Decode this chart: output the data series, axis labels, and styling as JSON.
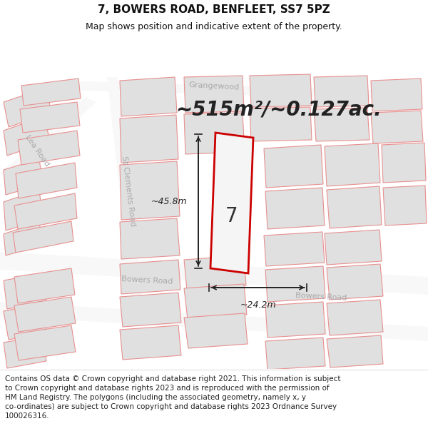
{
  "title": "7, BOWERS ROAD, BENFLEET, SS7 5PZ",
  "subtitle": "Map shows position and indicative extent of the property.",
  "area_text": "~515m²/~0.127ac.",
  "label_number": "7",
  "dim_width": "~24.2m",
  "dim_height": "~45.8m",
  "footer_lines": [
    "Contains OS data © Crown copyright and database right 2021. This information is subject to Crown copyright and database rights 2023 and is reproduced with the permission of",
    "HM Land Registry. The polygons (including the associated geometry, namely x, y co-ordinates) are subject to Crown copyright and database rights 2023 Ordnance Survey",
    "100026316."
  ],
  "map_bg": "#eeeeea",
  "building_fill": "#e0e0e0",
  "building_edge": "#e89090",
  "highlight_edge": "#cc0000",
  "highlight_fill": "#f5f5f5",
  "road_fill": "#f8f8f8",
  "road_outline": "#d8d8d8",
  "street_color": "#aaaaaa",
  "title_fontsize": 11,
  "subtitle_fontsize": 9,
  "area_fontsize": 20,
  "footer_fontsize": 7.5,
  "number_fontsize": 20
}
